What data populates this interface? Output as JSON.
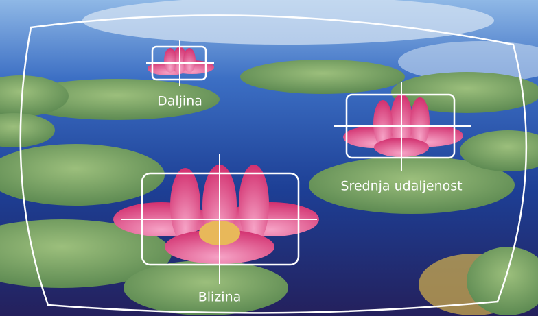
{
  "zones": [
    {
      "label": "Daljina"
    },
    {
      "label": "Srednja udaljenost"
    },
    {
      "label": "Blizina"
    }
  ]
}
